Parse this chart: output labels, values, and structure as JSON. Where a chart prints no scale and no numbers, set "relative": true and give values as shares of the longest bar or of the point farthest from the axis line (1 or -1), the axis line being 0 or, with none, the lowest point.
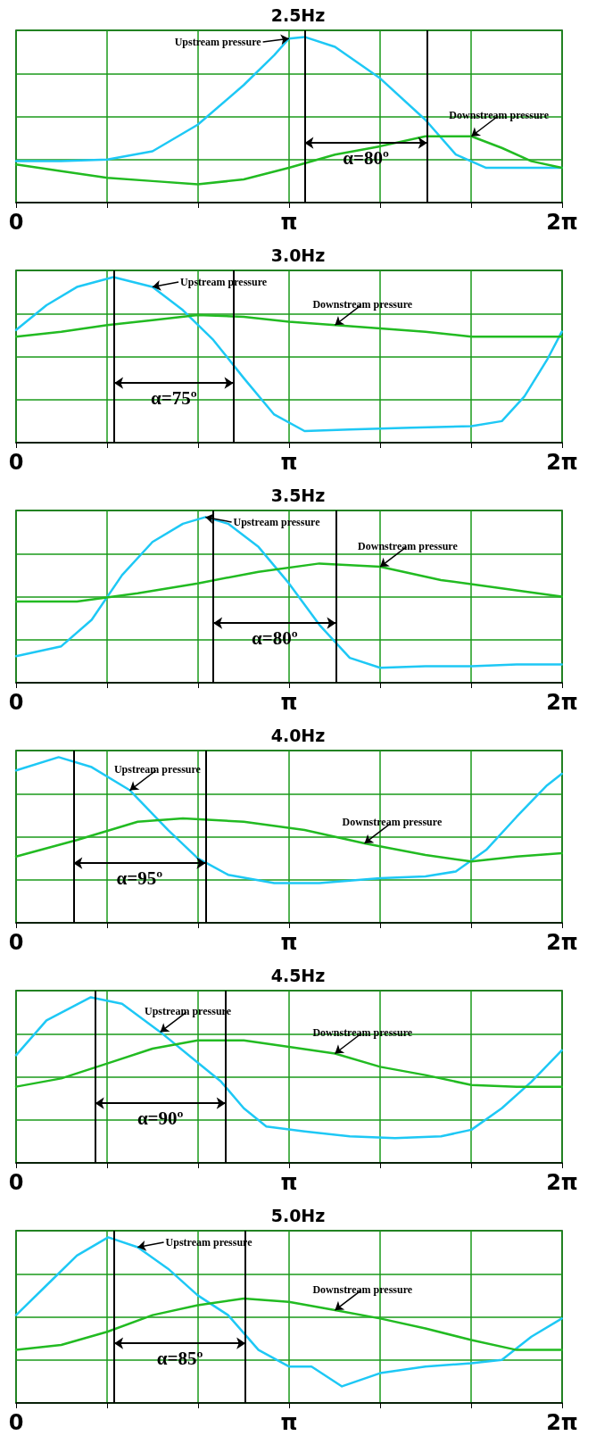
{
  "chart_data": [
    {
      "type": "line",
      "title": "2.5Hz",
      "relative": true,
      "grid": true,
      "marker": "none",
      "xlim": [
        0,
        6.2832
      ],
      "xticks": [
        {
          "value": 0,
          "label": "0"
        },
        {
          "value": 1.0472,
          "label": null
        },
        {
          "value": 2.0944,
          "label": null
        },
        {
          "value": 3.1416,
          "label": "π"
        },
        {
          "value": 4.1888,
          "label": null
        },
        {
          "value": 5.236,
          "label": null
        },
        {
          "value": 6.2832,
          "label": "2π"
        }
      ],
      "series": [
        {
          "name": "Upstream pressure",
          "color": "#1ec8f5",
          "x": [
            0,
            0.52,
            1.05,
            1.57,
            2.09,
            2.62,
            2.97,
            3.14,
            3.32,
            3.67,
            4.19,
            4.71,
            5.06,
            5.41,
            5.76,
            6.28
          ],
          "values": [
            0.25,
            0.25,
            0.26,
            0.31,
            0.47,
            0.71,
            0.89,
            0.99,
            1,
            0.94,
            0.75,
            0.5,
            0.29,
            0.21,
            0.21,
            0.21
          ]
        },
        {
          "name": "Downstream pressure",
          "color": "#22bb22",
          "x": [
            0,
            0.52,
            1.05,
            1.57,
            2.09,
            2.62,
            3.14,
            3.67,
            4.19,
            4.71,
            5.24,
            5.59,
            5.93,
            6.28
          ],
          "values": [
            0.23,
            0.19,
            0.15,
            0.13,
            0.11,
            0.14,
            0.21,
            0.29,
            0.34,
            0.4,
            0.4,
            0.33,
            0.25,
            0.21
          ]
        }
      ],
      "ref_lines": [
        {
          "axis": "x",
          "value": 3.32,
          "color": "#000000"
        },
        {
          "axis": "x",
          "value": 4.73,
          "color": "#000000"
        }
      ],
      "annotations": [
        "α=80º"
      ]
    },
    {
      "type": "line",
      "title": "3.0Hz",
      "relative": true,
      "grid": true,
      "marker": "none",
      "xlim": [
        0,
        6.2832
      ],
      "xticks": [
        {
          "value": 0,
          "label": "0"
        },
        {
          "value": 1.0472,
          "label": null
        },
        {
          "value": 2.0944,
          "label": null
        },
        {
          "value": 3.1416,
          "label": "π"
        },
        {
          "value": 4.1888,
          "label": null
        },
        {
          "value": 5.236,
          "label": null
        },
        {
          "value": 6.2832,
          "label": "2π"
        }
      ],
      "series": [
        {
          "name": "Upstream pressure",
          "color": "#1ec8f5",
          "x": [
            0,
            0.35,
            0.7,
            1.12,
            1.57,
            1.92,
            2.27,
            2.62,
            2.97,
            3.32,
            3.84,
            4.54,
            5.24,
            5.59,
            5.85,
            6.11,
            6.28
          ],
          "values": [
            0.68,
            0.83,
            0.94,
            1,
            0.94,
            0.8,
            0.62,
            0.39,
            0.17,
            0.07,
            0.08,
            0.09,
            0.1,
            0.13,
            0.28,
            0.5,
            0.67
          ]
        },
        {
          "name": "Downstream pressure",
          "color": "#22bb22",
          "x": [
            0,
            0.52,
            1.05,
            1.57,
            2.09,
            2.62,
            3.14,
            3.67,
            4.19,
            4.71,
            5.24,
            5.76,
            6.28
          ],
          "values": [
            0.64,
            0.67,
            0.71,
            0.74,
            0.77,
            0.76,
            0.73,
            0.71,
            0.69,
            0.67,
            0.64,
            0.64,
            0.64
          ]
        }
      ],
      "ref_lines": [
        {
          "axis": "x",
          "value": 1.13,
          "color": "#000000"
        },
        {
          "axis": "x",
          "value": 2.5,
          "color": "#000000"
        }
      ],
      "annotations": [
        "α=75º"
      ]
    },
    {
      "type": "line",
      "title": "3.5Hz",
      "relative": true,
      "grid": true,
      "marker": "none",
      "xlim": [
        0,
        6.2832
      ],
      "xticks": [
        {
          "value": 0,
          "label": "0"
        },
        {
          "value": 1.0472,
          "label": null
        },
        {
          "value": 2.0944,
          "label": null
        },
        {
          "value": 3.1416,
          "label": "π"
        },
        {
          "value": 4.1888,
          "label": null
        },
        {
          "value": 5.236,
          "label": null
        },
        {
          "value": 6.2832,
          "label": "2π"
        }
      ],
      "series": [
        {
          "name": "Upstream pressure",
          "color": "#1ec8f5",
          "x": [
            0,
            0.52,
            0.87,
            1.22,
            1.57,
            1.92,
            2.18,
            2.44,
            2.79,
            3.14,
            3.49,
            3.84,
            4.19,
            4.71,
            5.24,
            5.76,
            6.28
          ],
          "values": [
            0.16,
            0.22,
            0.38,
            0.65,
            0.85,
            0.96,
            1,
            0.96,
            0.82,
            0.6,
            0.35,
            0.15,
            0.09,
            0.1,
            0.1,
            0.11,
            0.11
          ]
        },
        {
          "name": "Downstream pressure",
          "color": "#22bb22",
          "x": [
            0,
            0.7,
            1.4,
            2.09,
            2.79,
            3.49,
            4.19,
            4.89,
            5.59,
            6.28
          ],
          "values": [
            0.49,
            0.49,
            0.54,
            0.6,
            0.67,
            0.72,
            0.7,
            0.62,
            0.57,
            0.52
          ]
        }
      ],
      "ref_lines": [
        {
          "axis": "x",
          "value": 2.27,
          "color": "#000000"
        },
        {
          "axis": "x",
          "value": 3.68,
          "color": "#000000"
        }
      ],
      "annotations": [
        "α=80º"
      ]
    },
    {
      "type": "line",
      "title": "4.0Hz",
      "relative": true,
      "grid": true,
      "marker": "none",
      "xlim": [
        0,
        6.2832
      ],
      "xticks": [
        {
          "value": 0,
          "label": "0"
        },
        {
          "value": 1.0472,
          "label": null
        },
        {
          "value": 2.0944,
          "label": null
        },
        {
          "value": 3.1416,
          "label": "π"
        },
        {
          "value": 4.1888,
          "label": null
        },
        {
          "value": 5.236,
          "label": null
        },
        {
          "value": 6.2832,
          "label": "2π"
        }
      ],
      "series": [
        {
          "name": "Upstream pressure",
          "color": "#1ec8f5",
          "x": [
            0,
            0.49,
            0.87,
            1.31,
            1.75,
            2.09,
            2.44,
            2.97,
            3.49,
            4.19,
            4.71,
            5.06,
            5.41,
            5.76,
            6.11,
            6.28
          ],
          "values": [
            0.92,
            1,
            0.94,
            0.8,
            0.56,
            0.39,
            0.29,
            0.24,
            0.24,
            0.27,
            0.28,
            0.31,
            0.44,
            0.64,
            0.83,
            0.9
          ]
        },
        {
          "name": "Downstream pressure",
          "color": "#22bb22",
          "x": [
            0,
            0.7,
            1.4,
            1.92,
            2.62,
            3.32,
            4.01,
            4.71,
            5.24,
            5.76,
            6.28
          ],
          "values": [
            0.4,
            0.5,
            0.61,
            0.63,
            0.61,
            0.56,
            0.48,
            0.41,
            0.37,
            0.4,
            0.42
          ]
        }
      ],
      "ref_lines": [
        {
          "axis": "x",
          "value": 0.66,
          "color": "#000000"
        },
        {
          "axis": "x",
          "value": 2.18,
          "color": "#000000"
        }
      ],
      "annotations": [
        "α=95º"
      ]
    },
    {
      "type": "line",
      "title": "4.5Hz",
      "relative": true,
      "grid": true,
      "marker": "none",
      "xlim": [
        0,
        6.2832
      ],
      "xticks": [
        {
          "value": 0,
          "label": "0"
        },
        {
          "value": 1.0472,
          "label": null
        },
        {
          "value": 2.0944,
          "label": null
        },
        {
          "value": 3.1416,
          "label": "π"
        },
        {
          "value": 4.1888,
          "label": null
        },
        {
          "value": 5.236,
          "label": null
        },
        {
          "value": 6.2832,
          "label": "2π"
        }
      ],
      "series": [
        {
          "name": "Upstream pressure",
          "color": "#1ec8f5",
          "x": [
            0,
            0.35,
            0.86,
            1.22,
            1.66,
            2.01,
            2.36,
            2.62,
            2.88,
            3.32,
            3.84,
            4.36,
            4.89,
            5.24,
            5.59,
            5.93,
            6.28
          ],
          "values": [
            0.65,
            0.86,
            1,
            0.96,
            0.79,
            0.64,
            0.49,
            0.33,
            0.22,
            0.19,
            0.16,
            0.15,
            0.16,
            0.2,
            0.33,
            0.49,
            0.68
          ]
        },
        {
          "name": "Downstream pressure",
          "color": "#22bb22",
          "x": [
            0,
            0.52,
            1.05,
            1.57,
            2.09,
            2.62,
            3.14,
            3.67,
            4.19,
            4.71,
            5.24,
            5.76,
            6.28
          ],
          "values": [
            0.46,
            0.51,
            0.6,
            0.69,
            0.74,
            0.74,
            0.7,
            0.66,
            0.58,
            0.53,
            0.47,
            0.46,
            0.46
          ]
        }
      ],
      "ref_lines": [
        {
          "axis": "x",
          "value": 0.91,
          "color": "#000000"
        },
        {
          "axis": "x",
          "value": 2.41,
          "color": "#000000"
        }
      ],
      "annotations": [
        "α=90º"
      ]
    },
    {
      "type": "line",
      "title": "5.0Hz",
      "relative": true,
      "grid": true,
      "marker": "none",
      "xlim": [
        0,
        6.2832
      ],
      "xticks": [
        {
          "value": 0,
          "label": "0"
        },
        {
          "value": 1.0472,
          "label": null
        },
        {
          "value": 2.0944,
          "label": null
        },
        {
          "value": 3.1416,
          "label": "π"
        },
        {
          "value": 4.1888,
          "label": null
        },
        {
          "value": 5.236,
          "label": null
        },
        {
          "value": 6.2832,
          "label": "2π"
        }
      ],
      "series": [
        {
          "name": "Upstream pressure",
          "color": "#1ec8f5",
          "x": [
            0,
            0.35,
            0.7,
            1.06,
            1.4,
            1.75,
            2.09,
            2.44,
            2.79,
            3.14,
            3.4,
            3.75,
            4.19,
            4.71,
            5.24,
            5.59,
            5.93,
            6.28
          ],
          "values": [
            0.53,
            0.71,
            0.89,
            1,
            0.94,
            0.81,
            0.65,
            0.53,
            0.32,
            0.22,
            0.22,
            0.1,
            0.18,
            0.22,
            0.24,
            0.26,
            0.4,
            0.51
          ]
        },
        {
          "name": "Downstream pressure",
          "color": "#22bb22",
          "x": [
            0,
            0.52,
            1.05,
            1.57,
            2.09,
            2.62,
            3.14,
            3.67,
            4.19,
            4.71,
            5.24,
            5.76,
            6.28
          ],
          "values": [
            0.32,
            0.35,
            0.43,
            0.53,
            0.59,
            0.63,
            0.61,
            0.56,
            0.51,
            0.45,
            0.38,
            0.32,
            0.32
          ]
        }
      ],
      "ref_lines": [
        {
          "axis": "x",
          "value": 1.13,
          "color": "#000000"
        },
        {
          "axis": "x",
          "value": 2.64,
          "color": "#000000"
        }
      ],
      "annotations": [
        "α=85º"
      ]
    }
  ]
}
